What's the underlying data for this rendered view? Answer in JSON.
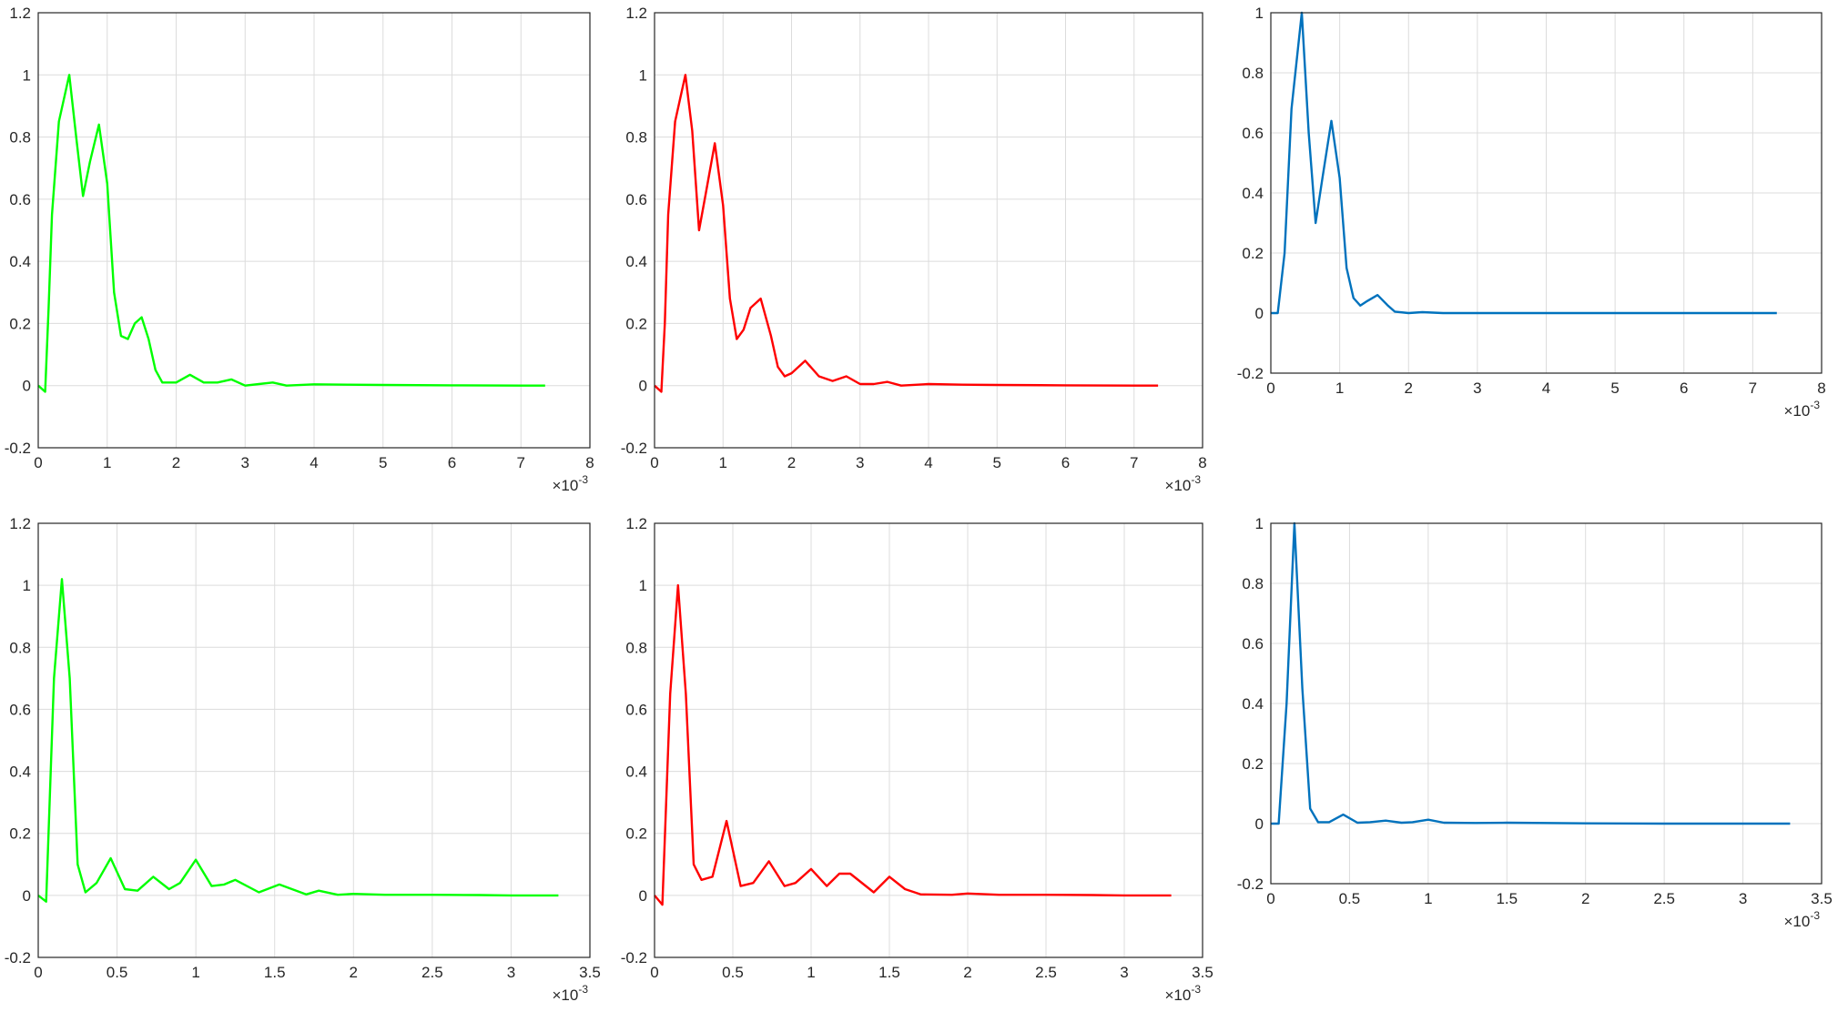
{
  "chart_data": [
    {
      "type": "line",
      "line_color": "#00ff00",
      "grid": true,
      "xlim": [
        0,
        0.008
      ],
      "ylim": [
        -0.2,
        1.2
      ],
      "x_ticks": [
        "0",
        "1",
        "2",
        "3",
        "4",
        "5",
        "6",
        "7",
        "8"
      ],
      "y_ticks": [
        "-0.2",
        "0",
        "0.2",
        "0.4",
        "0.6",
        "0.8",
        "1",
        "1.2"
      ],
      "x_exponent": "-3",
      "series": [
        {
          "x": [
            0,
            0.0001,
            0.00015,
            0.0002,
            0.0003,
            0.00045,
            0.00055,
            0.00065,
            0.00075,
            0.00088,
            0.001,
            0.0011,
            0.0012,
            0.0013,
            0.0014,
            0.0015,
            0.0016,
            0.0017,
            0.0018,
            0.002,
            0.0022,
            0.0024,
            0.0026,
            0.0028,
            0.003,
            0.0032,
            0.0034,
            0.0036,
            0.004,
            0.0045,
            0.005,
            0.006,
            0.007,
            0.00735
          ],
          "y": [
            0,
            -0.02,
            0.25,
            0.55,
            0.85,
            1.0,
            0.8,
            0.61,
            0.72,
            0.84,
            0.65,
            0.3,
            0.16,
            0.15,
            0.2,
            0.22,
            0.15,
            0.05,
            0.01,
            0.01,
            0.035,
            0.01,
            0.01,
            0.02,
            0.0,
            0.005,
            0.01,
            0.0,
            0.004,
            0.003,
            0.002,
            0.001,
            0.0,
            0.0
          ]
        }
      ]
    },
    {
      "type": "line",
      "line_color": "#ff0000",
      "grid": true,
      "xlim": [
        0,
        0.008
      ],
      "ylim": [
        -0.2,
        1.2
      ],
      "x_ticks": [
        "0",
        "1",
        "2",
        "3",
        "4",
        "5",
        "6",
        "7",
        "8"
      ],
      "y_ticks": [
        "-0.2",
        "0",
        "0.2",
        "0.4",
        "0.6",
        "0.8",
        "1",
        "1.2"
      ],
      "x_exponent": "-3",
      "series": [
        {
          "x": [
            0,
            0.0001,
            0.00015,
            0.0002,
            0.0003,
            0.00045,
            0.00055,
            0.00065,
            0.00075,
            0.00088,
            0.001,
            0.0011,
            0.0012,
            0.0013,
            0.0014,
            0.00155,
            0.0017,
            0.0018,
            0.0019,
            0.002,
            0.0022,
            0.0024,
            0.0026,
            0.0028,
            0.003,
            0.0032,
            0.0034,
            0.0036,
            0.004,
            0.0045,
            0.005,
            0.006,
            0.007,
            0.00735
          ],
          "y": [
            0,
            -0.02,
            0.2,
            0.55,
            0.85,
            1.0,
            0.82,
            0.5,
            0.62,
            0.78,
            0.58,
            0.28,
            0.15,
            0.18,
            0.25,
            0.28,
            0.16,
            0.06,
            0.03,
            0.04,
            0.08,
            0.03,
            0.015,
            0.03,
            0.005,
            0.005,
            0.012,
            0.0,
            0.005,
            0.003,
            0.002,
            0.001,
            0.0,
            0.0
          ]
        }
      ]
    },
    {
      "type": "line",
      "line_color": "#0072bd",
      "grid": true,
      "xlim": [
        0,
        0.008
      ],
      "ylim": [
        -0.2,
        1.0
      ],
      "x_ticks": [
        "0",
        "1",
        "2",
        "3",
        "4",
        "5",
        "6",
        "7",
        "8"
      ],
      "y_ticks": [
        "-0.2",
        "0",
        "0.2",
        "0.4",
        "0.6",
        "0.8",
        "1"
      ],
      "x_exponent": "-3",
      "series": [
        {
          "x": [
            0,
            0.0001,
            0.0002,
            0.0003,
            0.00045,
            0.00055,
            0.00065,
            0.00075,
            0.00088,
            0.001,
            0.0011,
            0.0012,
            0.0013,
            0.0014,
            0.00155,
            0.0017,
            0.0018,
            0.002,
            0.0022,
            0.0025,
            0.003,
            0.004,
            0.005,
            0.006,
            0.007,
            0.00735
          ],
          "y": [
            0,
            0.0,
            0.2,
            0.68,
            1.0,
            0.6,
            0.3,
            0.45,
            0.64,
            0.45,
            0.15,
            0.05,
            0.025,
            0.04,
            0.06,
            0.025,
            0.005,
            0.0,
            0.003,
            0.0,
            0.0,
            0.0,
            0.0,
            0.0,
            0.0,
            0.0
          ]
        }
      ]
    },
    {
      "type": "line",
      "line_color": "#00ff00",
      "grid": true,
      "xlim": [
        0,
        0.0035
      ],
      "ylim": [
        -0.2,
        1.2
      ],
      "x_ticks": [
        "0",
        "0.5",
        "1",
        "1.5",
        "2",
        "2.5",
        "3",
        "3.5"
      ],
      "y_ticks": [
        "-0.2",
        "0",
        "0.2",
        "0.4",
        "0.6",
        "0.8",
        "1",
        "1.2"
      ],
      "x_exponent": "-3",
      "series": [
        {
          "x": [
            0,
            5e-05,
            0.0001,
            0.00015,
            0.0002,
            0.00025,
            0.0003,
            0.00037,
            0.00046,
            0.00055,
            0.00063,
            0.00073,
            0.00083,
            0.0009,
            0.001,
            0.0011,
            0.00118,
            0.00125,
            0.0014,
            0.00153,
            0.0017,
            0.00178,
            0.0019,
            0.002,
            0.0022,
            0.0025,
            0.0028,
            0.003,
            0.0033
          ],
          "y": [
            0,
            -0.02,
            0.7,
            1.02,
            0.7,
            0.1,
            0.01,
            0.04,
            0.12,
            0.02,
            0.015,
            0.06,
            0.02,
            0.04,
            0.115,
            0.03,
            0.035,
            0.05,
            0.01,
            0.035,
            0.003,
            0.015,
            0.002,
            0.005,
            0.002,
            0.002,
            0.001,
            0.0,
            0.0
          ]
        }
      ]
    },
    {
      "type": "line",
      "line_color": "#ff0000",
      "grid": true,
      "xlim": [
        0,
        0.0035
      ],
      "ylim": [
        -0.2,
        1.2
      ],
      "x_ticks": [
        "0",
        "0.5",
        "1",
        "1.5",
        "2",
        "2.5",
        "3",
        "3.5"
      ],
      "y_ticks": [
        "-0.2",
        "0",
        "0.2",
        "0.4",
        "0.6",
        "0.8",
        "1",
        "1.2"
      ],
      "x_exponent": "-3",
      "series": [
        {
          "x": [
            0,
            5e-05,
            0.0001,
            0.00015,
            0.0002,
            0.00025,
            0.0003,
            0.00037,
            0.00046,
            0.00055,
            0.00063,
            0.00073,
            0.00083,
            0.0009,
            0.001,
            0.0011,
            0.00118,
            0.00125,
            0.0014,
            0.0015,
            0.0016,
            0.0017,
            0.0019,
            0.002,
            0.0022,
            0.0025,
            0.0028,
            0.003,
            0.0033
          ],
          "y": [
            0,
            -0.03,
            0.65,
            1.0,
            0.65,
            0.1,
            0.05,
            0.06,
            0.24,
            0.03,
            0.04,
            0.11,
            0.03,
            0.04,
            0.085,
            0.03,
            0.07,
            0.07,
            0.01,
            0.06,
            0.02,
            0.003,
            0.002,
            0.006,
            0.002,
            0.002,
            0.001,
            0.0,
            0.0
          ]
        }
      ]
    },
    {
      "type": "line",
      "line_color": "#0072bd",
      "grid": true,
      "xlim": [
        0,
        0.0035
      ],
      "ylim": [
        -0.2,
        1.0
      ],
      "x_ticks": [
        "0",
        "0.5",
        "1",
        "1.5",
        "2",
        "2.5",
        "3",
        "3.5"
      ],
      "y_ticks": [
        "-0.2",
        "0",
        "0.2",
        "0.4",
        "0.6",
        "0.8",
        "1"
      ],
      "x_exponent": "-3",
      "series": [
        {
          "x": [
            0,
            5e-05,
            0.0001,
            0.00015,
            0.0002,
            0.00025,
            0.0003,
            0.00037,
            0.00046,
            0.00055,
            0.00063,
            0.00073,
            0.00083,
            0.0009,
            0.001,
            0.0011,
            0.0013,
            0.0015,
            0.002,
            0.0025,
            0.003,
            0.0033
          ],
          "y": [
            0,
            0.0,
            0.4,
            1.0,
            0.45,
            0.05,
            0.005,
            0.005,
            0.03,
            0.003,
            0.005,
            0.01,
            0.003,
            0.005,
            0.013,
            0.003,
            0.002,
            0.003,
            0.001,
            0.0,
            0.0,
            0.0
          ]
        }
      ]
    }
  ]
}
